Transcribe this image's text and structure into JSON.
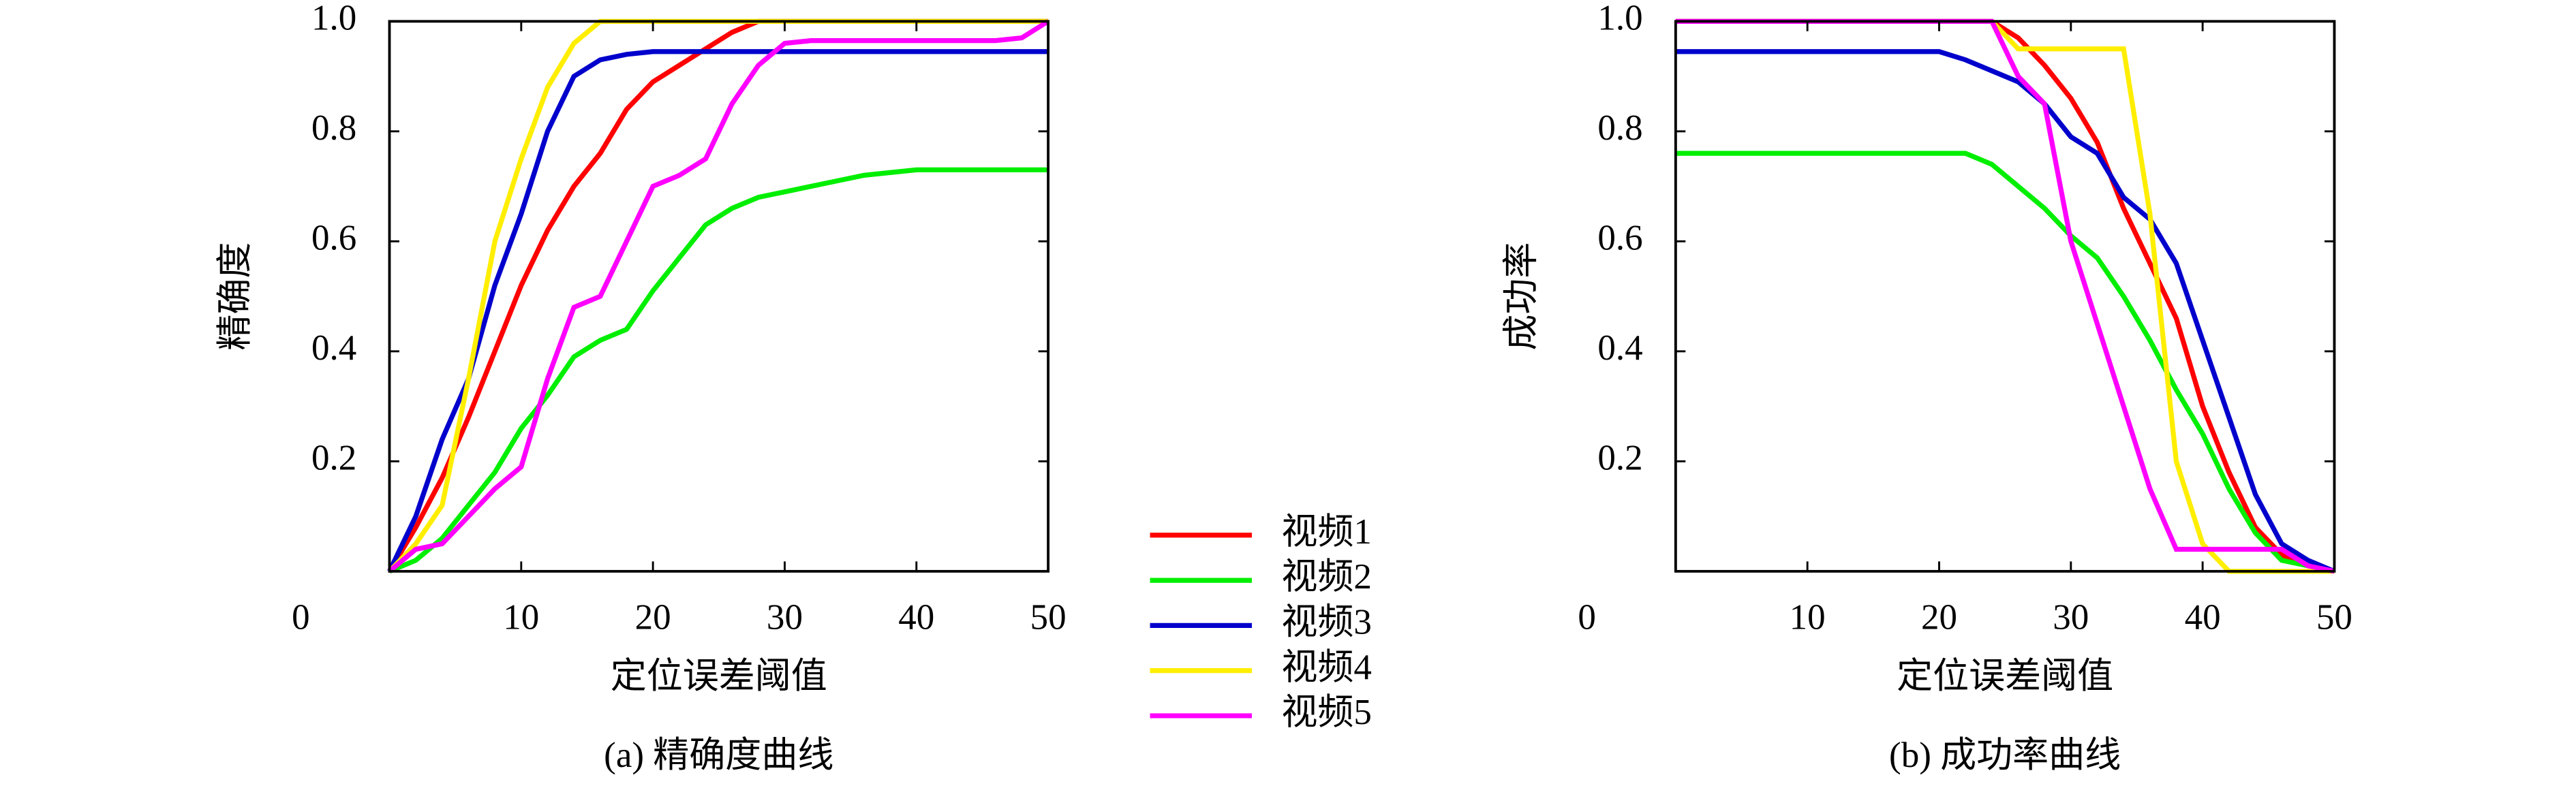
{
  "chart_data": [
    {
      "type": "line",
      "ylabel": "精确度",
      "xlabel": "定位误差阈值",
      "caption": "(a) 精确度曲线",
      "xlim": [
        0,
        50
      ],
      "ylim": [
        0,
        1
      ],
      "xticks": [
        0,
        10,
        20,
        30,
        40,
        50
      ],
      "yticks": [
        0.2,
        0.4,
        0.6,
        0.8,
        {
          "value": 1,
          "label": "1.0"
        }
      ],
      "x": [
        0,
        2,
        4,
        6,
        8,
        10,
        12,
        14,
        16,
        18,
        20,
        22,
        24,
        26,
        28,
        30,
        32,
        34,
        36,
        38,
        40,
        42,
        44,
        46,
        48,
        50
      ],
      "series": [
        {
          "name": "视频1",
          "color": "#ff0000",
          "values": [
            0,
            0.08,
            0.17,
            0.28,
            0.4,
            0.52,
            0.62,
            0.7,
            0.76,
            0.84,
            0.89,
            0.92,
            0.95,
            0.98,
            1,
            1,
            1,
            1,
            1,
            1,
            1,
            1,
            1,
            1,
            1,
            1
          ]
        },
        {
          "name": "视频2",
          "color": "#00ee00",
          "values": [
            0,
            0.02,
            0.06,
            0.12,
            0.18,
            0.26,
            0.32,
            0.39,
            0.42,
            0.44,
            0.51,
            0.57,
            0.63,
            0.66,
            0.68,
            0.69,
            0.7,
            0.71,
            0.72,
            0.725,
            0.73,
            0.73,
            0.73,
            0.73,
            0.73,
            0.73
          ]
        },
        {
          "name": "视频3",
          "color": "#0000cc",
          "values": [
            0,
            0.1,
            0.24,
            0.35,
            0.52,
            0.65,
            0.8,
            0.9,
            0.93,
            0.94,
            0.945,
            0.945,
            0.945,
            0.945,
            0.945,
            0.945,
            0.945,
            0.945,
            0.945,
            0.945,
            0.945,
            0.945,
            0.945,
            0.945,
            0.945,
            0.945
          ]
        },
        {
          "name": "视频4",
          "color": "#ffee00",
          "values": [
            0,
            0.05,
            0.12,
            0.35,
            0.6,
            0.75,
            0.88,
            0.96,
            1,
            1,
            1,
            1,
            1,
            1,
            1,
            1,
            1,
            1,
            1,
            1,
            1,
            1,
            1,
            1,
            1,
            1
          ]
        },
        {
          "name": "视频5",
          "color": "#ff00ff",
          "values": [
            0,
            0.04,
            0.05,
            0.1,
            0.15,
            0.19,
            0.35,
            0.48,
            0.5,
            0.6,
            0.7,
            0.72,
            0.75,
            0.85,
            0.92,
            0.96,
            0.965,
            0.965,
            0.965,
            0.965,
            0.965,
            0.965,
            0.965,
            0.965,
            0.97,
            1
          ]
        }
      ]
    },
    {
      "type": "line",
      "ylabel": "成功率",
      "xlabel": "定位误差阈值",
      "caption": "(b) 成功率曲线",
      "xlim": [
        0,
        50
      ],
      "ylim": [
        0,
        1
      ],
      "xticks": [
        0,
        10,
        20,
        30,
        40,
        50
      ],
      "yticks": [
        0.2,
        0.4,
        0.6,
        0.8,
        {
          "value": 1,
          "label": "1.0"
        }
      ],
      "x": [
        0,
        2,
        4,
        6,
        8,
        10,
        12,
        14,
        16,
        18,
        20,
        22,
        24,
        26,
        28,
        30,
        32,
        34,
        36,
        38,
        40,
        42,
        44,
        46,
        48,
        50
      ],
      "series": [
        {
          "color": "#ff0000",
          "values": [
            1,
            1,
            1,
            1,
            1,
            1,
            1,
            1,
            1,
            1,
            1,
            1,
            1,
            0.97,
            0.92,
            0.86,
            0.78,
            0.66,
            0.56,
            0.46,
            0.3,
            0.18,
            0.08,
            0.03,
            0.01,
            0
          ]
        },
        {
          "color": "#00ee00",
          "values": [
            0.76,
            0.76,
            0.76,
            0.76,
            0.76,
            0.76,
            0.76,
            0.76,
            0.76,
            0.76,
            0.76,
            0.76,
            0.74,
            0.7,
            0.66,
            0.61,
            0.57,
            0.5,
            0.42,
            0.33,
            0.25,
            0.15,
            0.07,
            0.02,
            0.01,
            0
          ]
        },
        {
          "color": "#0000cc",
          "values": [
            0.945,
            0.945,
            0.945,
            0.945,
            0.945,
            0.945,
            0.945,
            0.945,
            0.945,
            0.945,
            0.945,
            0.93,
            0.91,
            0.89,
            0.85,
            0.79,
            0.76,
            0.68,
            0.64,
            0.56,
            0.42,
            0.28,
            0.14,
            0.05,
            0.02,
            0
          ]
        },
        {
          "color": "#ffee00",
          "values": [
            1,
            1,
            1,
            1,
            1,
            1,
            1,
            1,
            1,
            1,
            1,
            1,
            1,
            0.95,
            0.95,
            0.95,
            0.95,
            0.95,
            0.65,
            0.2,
            0.05,
            0,
            0,
            0,
            0,
            0
          ]
        },
        {
          "color": "#ff00ff",
          "values": [
            1,
            1,
            1,
            1,
            1,
            1,
            1,
            1,
            1,
            1,
            1,
            1,
            1,
            0.9,
            0.85,
            0.6,
            0.45,
            0.3,
            0.15,
            0.04,
            0.04,
            0.04,
            0.04,
            0.04,
            0.01,
            0
          ]
        }
      ]
    }
  ]
}
